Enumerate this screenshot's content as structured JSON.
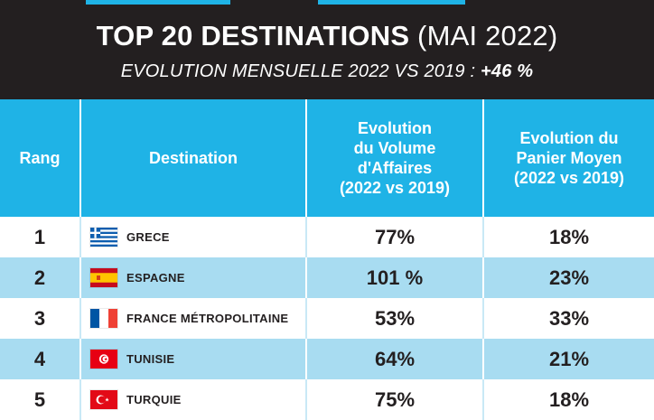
{
  "header": {
    "title_bold": "TOP 20 DESTINATIONS",
    "title_light": "(MAI 2022)",
    "subtitle_text": "EVOLUTION MENSUELLE 2022 VS 2019 : ",
    "subtitle_value": "+46 %"
  },
  "table": {
    "headers": {
      "rank": "Rang",
      "destination": "Destination",
      "volume": [
        "Evolution",
        "du Volume",
        "d'Affaires",
        "(2022 vs 2019)"
      ],
      "basket": [
        "Evolution du",
        "Panier Moyen",
        "(2022 vs 2019)"
      ]
    },
    "rows": [
      {
        "rank": "1",
        "destination": "GRECE",
        "flag": "greece-flag-icon",
        "volume": "77%",
        "basket": "18%"
      },
      {
        "rank": "2",
        "destination": "ESPAGNE",
        "flag": "spain-flag-icon",
        "volume": "101 %",
        "basket": "23%"
      },
      {
        "rank": "3",
        "destination": "FRANCE MÉTROPOLITAINE",
        "flag": "france-flag-icon",
        "volume": "53%",
        "basket": "33%"
      },
      {
        "rank": "4",
        "destination": "TUNISIE",
        "flag": "tunisia-flag-icon",
        "volume": "64%",
        "basket": "21%"
      },
      {
        "rank": "5",
        "destination": "TURQUIE",
        "flag": "turkey-flag-icon",
        "volume": "75%",
        "basket": "18%"
      }
    ]
  },
  "colors": {
    "header_bg": "#231f20",
    "accent": "#1fb3e6",
    "row_alt": "#a8dcf1"
  }
}
